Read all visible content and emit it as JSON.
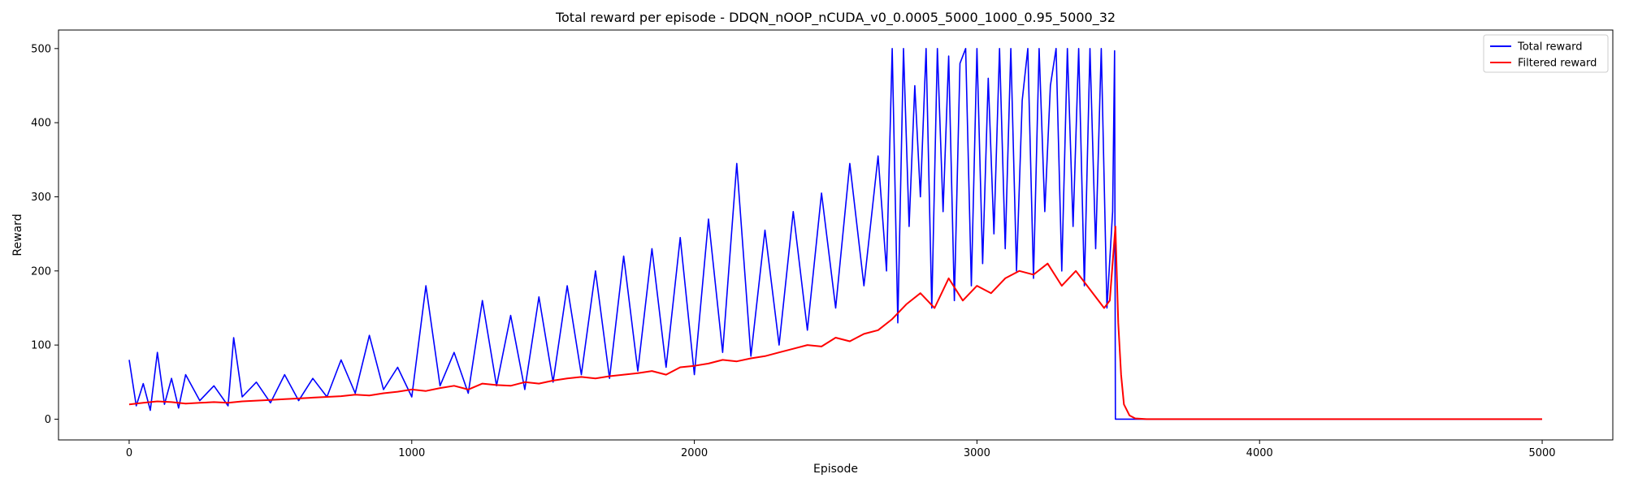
{
  "chart_data": {
    "type": "line",
    "title": "Total reward per episode - DDQN_nOOP_nCUDA_v0_0.0005_5000_1000_0.95_5000_32",
    "xlabel": "Episode",
    "ylabel": "Reward",
    "xlim": [
      -250,
      5250
    ],
    "ylim": [
      -28,
      525
    ],
    "xticks": [
      0,
      1000,
      2000,
      3000,
      4000,
      5000
    ],
    "yticks": [
      0,
      100,
      200,
      300,
      400,
      500
    ],
    "legend_position": "top-right",
    "grid": false,
    "series": [
      {
        "name": "Total reward",
        "color": "#0000ff",
        "x": [
          0,
          25,
          50,
          75,
          100,
          125,
          150,
          175,
          200,
          250,
          300,
          350,
          370,
          400,
          450,
          500,
          550,
          600,
          650,
          700,
          750,
          800,
          850,
          900,
          950,
          1000,
          1050,
          1100,
          1150,
          1200,
          1250,
          1300,
          1350,
          1400,
          1450,
          1500,
          1550,
          1600,
          1650,
          1700,
          1750,
          1800,
          1850,
          1900,
          1950,
          2000,
          2050,
          2100,
          2150,
          2200,
          2250,
          2300,
          2350,
          2400,
          2450,
          2500,
          2550,
          2600,
          2650,
          2680,
          2700,
          2720,
          2740,
          2760,
          2780,
          2800,
          2820,
          2840,
          2860,
          2880,
          2900,
          2920,
          2940,
          2960,
          2980,
          3000,
          3020,
          3040,
          3060,
          3080,
          3100,
          3120,
          3140,
          3160,
          3180,
          3200,
          3220,
          3240,
          3260,
          3280,
          3300,
          3320,
          3340,
          3360,
          3380,
          3400,
          3420,
          3440,
          3460,
          3480,
          3487,
          3490,
          3495,
          3500,
          3600,
          3800,
          4000,
          4500,
          5000
        ],
        "y": [
          80,
          18,
          48,
          12,
          90,
          20,
          55,
          15,
          60,
          25,
          45,
          18,
          110,
          30,
          50,
          22,
          60,
          25,
          55,
          30,
          80,
          35,
          113,
          40,
          70,
          30,
          180,
          45,
          90,
          35,
          160,
          45,
          140,
          40,
          165,
          50,
          180,
          60,
          200,
          55,
          220,
          65,
          230,
          70,
          245,
          60,
          270,
          90,
          345,
          85,
          255,
          100,
          280,
          120,
          305,
          150,
          345,
          180,
          355,
          200,
          500,
          130,
          500,
          260,
          450,
          300,
          500,
          150,
          500,
          280,
          490,
          160,
          480,
          500,
          180,
          500,
          210,
          460,
          250,
          500,
          230,
          500,
          200,
          430,
          500,
          190,
          500,
          280,
          450,
          500,
          200,
          500,
          260,
          500,
          180,
          500,
          230,
          500,
          150,
          280,
          497,
          0,
          0,
          0,
          0,
          0,
          0,
          0,
          0
        ]
      },
      {
        "name": "Filtered reward",
        "color": "#ff0000",
        "x": [
          0,
          50,
          100,
          150,
          200,
          250,
          300,
          350,
          400,
          450,
          500,
          550,
          600,
          650,
          700,
          750,
          800,
          850,
          900,
          950,
          1000,
          1050,
          1100,
          1150,
          1200,
          1250,
          1300,
          1350,
          1400,
          1450,
          1500,
          1550,
          1600,
          1650,
          1700,
          1750,
          1800,
          1850,
          1900,
          1950,
          2000,
          2050,
          2100,
          2150,
          2200,
          2250,
          2300,
          2350,
          2400,
          2450,
          2500,
          2550,
          2600,
          2650,
          2700,
          2750,
          2800,
          2850,
          2900,
          2950,
          3000,
          3050,
          3100,
          3150,
          3200,
          3250,
          3300,
          3350,
          3400,
          3450,
          3470,
          3490,
          3500,
          3510,
          3520,
          3540,
          3560,
          3600,
          3700,
          4000,
          4500,
          5000
        ],
        "y": [
          20,
          22,
          24,
          23,
          21,
          22,
          23,
          22,
          24,
          25,
          26,
          27,
          28,
          29,
          30,
          31,
          33,
          32,
          35,
          37,
          40,
          38,
          42,
          45,
          40,
          48,
          46,
          45,
          50,
          48,
          52,
          55,
          57,
          55,
          58,
          60,
          62,
          65,
          60,
          70,
          72,
          75,
          80,
          78,
          82,
          85,
          90,
          95,
          100,
          98,
          110,
          105,
          115,
          120,
          135,
          155,
          170,
          150,
          190,
          160,
          180,
          170,
          190,
          200,
          195,
          210,
          180,
          200,
          175,
          150,
          160,
          260,
          130,
          60,
          20,
          5,
          1,
          0,
          0,
          0,
          0,
          0
        ]
      }
    ]
  }
}
